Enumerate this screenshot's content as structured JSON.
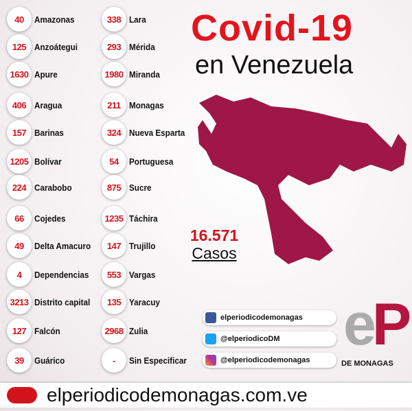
{
  "header": {
    "title": "Covid-19",
    "subtitle": "en Venezuela"
  },
  "states": [
    [
      "40",
      "Amazonas"
    ],
    [
      "125",
      "Anzoátegui"
    ],
    [
      "1630",
      "Apure"
    ],
    [
      "406",
      "Aragua"
    ],
    [
      "157",
      "Barinas"
    ],
    [
      "1205",
      "Bolívar"
    ],
    [
      "224",
      "Carabobo"
    ],
    [
      "66",
      "Cojedes"
    ],
    [
      "49",
      "Delta Amacuro"
    ],
    [
      "4",
      "Dependencias"
    ],
    [
      "3213",
      "Distrito capital"
    ],
    [
      "127",
      "Falcón"
    ],
    [
      "39",
      "Guárico"
    ],
    [
      "338",
      "Lara"
    ],
    [
      "293",
      "Mérida"
    ],
    [
      "1980",
      "Miranda"
    ],
    [
      "211",
      "Monagas"
    ],
    [
      "324",
      "Nueva Esparta"
    ],
    [
      "54",
      "Portuguesa"
    ],
    [
      "875",
      "Sucre"
    ],
    [
      "1235",
      "Táchira"
    ],
    [
      "147",
      "Trujillo"
    ],
    [
      "553",
      "Vargas"
    ],
    [
      "135",
      "Yaracuy"
    ],
    [
      "2968",
      "Zulia"
    ],
    [
      "-",
      "Sin Especificar"
    ]
  ],
  "total": {
    "value": "16.571",
    "label": "Casos"
  },
  "social": [
    "elperiodicodemonagas",
    "@elperiodicoDM",
    "@elperiodicodemonagas"
  ],
  "logo": {
    "letter_e": "e",
    "letter_p": "P",
    "subtitle": "DE MONAGAS"
  },
  "footer": {
    "website": "elperiodicodemonagas.com.ve"
  }
}
